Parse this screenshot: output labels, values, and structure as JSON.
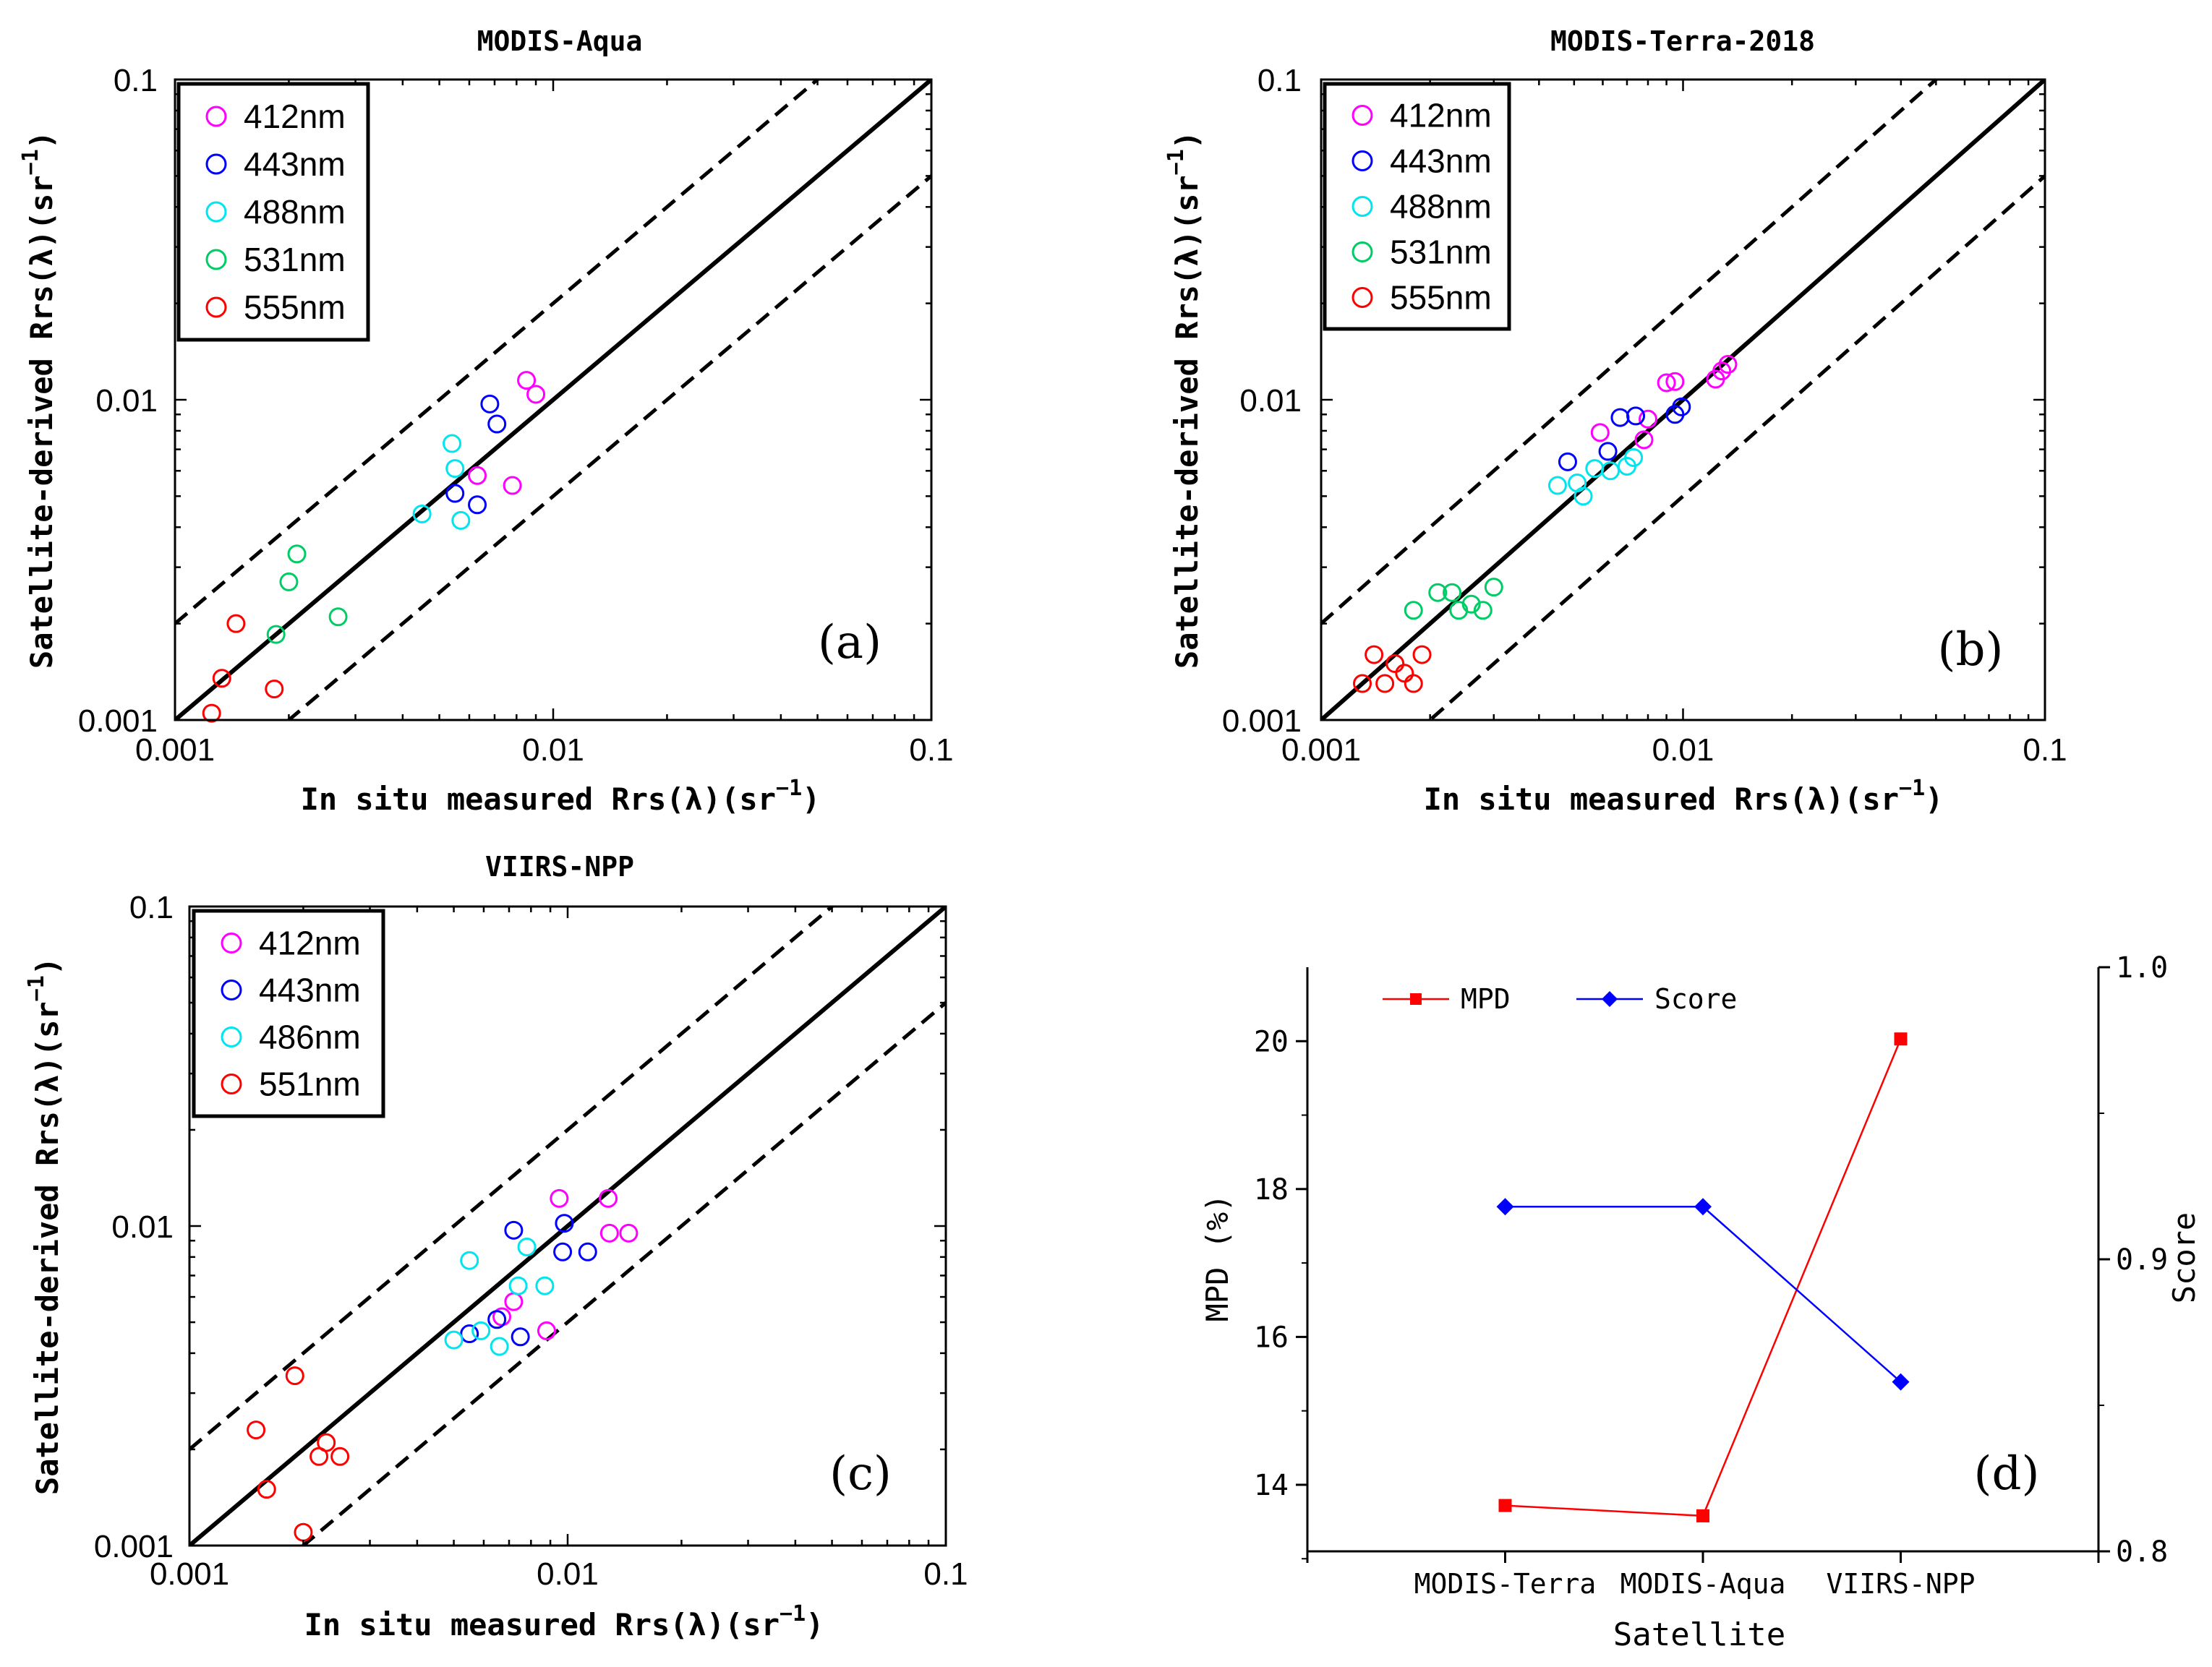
{
  "figure": {
    "panels": [
      "a",
      "b",
      "c",
      "d"
    ]
  },
  "chart_data": [
    {
      "id": "a",
      "type": "scatter",
      "title": "MODIS-Aqua",
      "xlabel_prefix": "In situ measured Rrs(λ)(sr",
      "ylabel_prefix": "Satellite-derived Rrs(λ)(sr",
      "unit_exp": "−1",
      "unit_close": ")",
      "xscale": "log",
      "yscale": "log",
      "xlim": [
        0.001,
        0.1
      ],
      "ylim": [
        0.001,
        0.1
      ],
      "xticks": [
        "0.001",
        "0.01",
        "0.1"
      ],
      "yticks": [
        "0.001",
        "0.01",
        "0.1"
      ],
      "legend_position": "top-left",
      "panel_label": "(a)",
      "reference_lines": {
        "one_to_one": 1,
        "upper": 2,
        "lower": 0.5
      },
      "series": [
        {
          "name": "412nm",
          "color": "#ff00ff",
          "points": [
            [
              0.0063,
              0.0058
            ],
            [
              0.0078,
              0.0054
            ],
            [
              0.0085,
              0.0115
            ],
            [
              0.009,
              0.0104
            ]
          ]
        },
        {
          "name": "443nm",
          "color": "#0000ff",
          "points": [
            [
              0.0055,
              0.0051
            ],
            [
              0.0063,
              0.0047
            ],
            [
              0.0068,
              0.0097
            ],
            [
              0.0071,
              0.0084
            ]
          ]
        },
        {
          "name": "488nm",
          "color": "#00e5ee",
          "points": [
            [
              0.0045,
              0.0044
            ],
            [
              0.0054,
              0.0073
            ],
            [
              0.0055,
              0.0061
            ],
            [
              0.0057,
              0.0042
            ]
          ]
        },
        {
          "name": "531nm",
          "color": "#00cc66",
          "points": [
            [
              0.00185,
              0.00185
            ],
            [
              0.002,
              0.0027
            ],
            [
              0.0021,
              0.0033
            ],
            [
              0.0027,
              0.0021
            ]
          ]
        },
        {
          "name": "555nm",
          "color": "#ff0000",
          "points": [
            [
              0.00125,
              0.00105
            ],
            [
              0.00133,
              0.00135
            ],
            [
              0.00145,
              0.002
            ],
            [
              0.00183,
              0.00125
            ]
          ]
        }
      ]
    },
    {
      "id": "b",
      "type": "scatter",
      "title": "MODIS-Terra-2018",
      "xlabel_prefix": "In situ measured Rrs(λ)(sr",
      "ylabel_prefix": "Satellite-derived Rrs(λ)(sr",
      "unit_exp": "−1",
      "unit_close": ")",
      "xscale": "log",
      "yscale": "log",
      "xlim": [
        0.001,
        0.1
      ],
      "ylim": [
        0.001,
        0.1
      ],
      "xticks": [
        "0.001",
        "0.01",
        "0.1"
      ],
      "yticks": [
        "0.001",
        "0.01",
        "0.1"
      ],
      "legend_position": "top-left",
      "panel_label": "(b)",
      "reference_lines": {
        "one_to_one": 1,
        "upper": 2,
        "lower": 0.5
      },
      "series": [
        {
          "name": "412nm",
          "color": "#ff00ff",
          "points": [
            [
              0.0059,
              0.0079
            ],
            [
              0.0078,
              0.0075
            ],
            [
              0.008,
              0.0087
            ],
            [
              0.009,
              0.0113
            ],
            [
              0.0095,
              0.0114
            ],
            [
              0.0123,
              0.0116
            ],
            [
              0.0128,
              0.0123
            ],
            [
              0.0133,
              0.0129
            ]
          ]
        },
        {
          "name": "443nm",
          "color": "#0000ff",
          "points": [
            [
              0.0048,
              0.0064
            ],
            [
              0.0062,
              0.0069
            ],
            [
              0.0067,
              0.0088
            ],
            [
              0.0074,
              0.0089
            ],
            [
              0.0095,
              0.009
            ],
            [
              0.0099,
              0.0095
            ]
          ]
        },
        {
          "name": "488nm",
          "color": "#00e5ee",
          "points": [
            [
              0.0045,
              0.0054
            ],
            [
              0.0051,
              0.0055
            ],
            [
              0.0053,
              0.005
            ],
            [
              0.0057,
              0.0061
            ],
            [
              0.0063,
              0.006
            ],
            [
              0.007,
              0.0062
            ],
            [
              0.0073,
              0.0066
            ]
          ]
        },
        {
          "name": "531nm",
          "color": "#00cc66",
          "points": [
            [
              0.0018,
              0.0022
            ],
            [
              0.0021,
              0.0025
            ],
            [
              0.0023,
              0.0025
            ],
            [
              0.0024,
              0.0022
            ],
            [
              0.0026,
              0.0023
            ],
            [
              0.0028,
              0.0022
            ],
            [
              0.003,
              0.0026
            ]
          ]
        },
        {
          "name": "555nm",
          "color": "#ff0000",
          "points": [
            [
              0.0013,
              0.0013
            ],
            [
              0.0014,
              0.0016
            ],
            [
              0.0015,
              0.0013
            ],
            [
              0.0016,
              0.0015
            ],
            [
              0.0017,
              0.0014
            ],
            [
              0.0018,
              0.0013
            ],
            [
              0.0019,
              0.0016
            ]
          ]
        }
      ]
    },
    {
      "id": "c",
      "type": "scatter",
      "title": "VIIRS-NPP",
      "xlabel_prefix": "In situ measured Rrs(λ)(sr",
      "ylabel_prefix": "Satellite-derived Rrs(λ)(sr",
      "unit_exp": "−1",
      "unit_close": ")",
      "xscale": "log",
      "yscale": "log",
      "xlim": [
        0.001,
        0.1
      ],
      "ylim": [
        0.001,
        0.1
      ],
      "xticks": [
        "0.001",
        "0.01",
        "0.1"
      ],
      "yticks": [
        "0.001",
        "0.01",
        "0.1"
      ],
      "legend_position": "top-left",
      "panel_label": "(c)",
      "reference_lines": {
        "one_to_one": 1,
        "upper": 2,
        "lower": 0.5
      },
      "series": [
        {
          "name": "412nm",
          "color": "#ff00ff",
          "points": [
            [
              0.0067,
              0.0052
            ],
            [
              0.0072,
              0.0058
            ],
            [
              0.0088,
              0.0047
            ],
            [
              0.0095,
              0.0122
            ],
            [
              0.0128,
              0.0122
            ],
            [
              0.0129,
              0.0095
            ],
            [
              0.0145,
              0.0095
            ]
          ]
        },
        {
          "name": "443nm",
          "color": "#0000ff",
          "points": [
            [
              0.0055,
              0.0046
            ],
            [
              0.0065,
              0.0051
            ],
            [
              0.0072,
              0.0097
            ],
            [
              0.0075,
              0.0045
            ],
            [
              0.0097,
              0.0083
            ],
            [
              0.0098,
              0.0102
            ],
            [
              0.0113,
              0.0083
            ]
          ]
        },
        {
          "name": "486nm",
          "color": "#00e5ee",
          "points": [
            [
              0.005,
              0.0044
            ],
            [
              0.0055,
              0.0078
            ],
            [
              0.0059,
              0.0047
            ],
            [
              0.0066,
              0.0042
            ],
            [
              0.0074,
              0.0065
            ],
            [
              0.0078,
              0.0086
            ],
            [
              0.0087,
              0.0065
            ]
          ]
        },
        {
          "name": "551nm",
          "color": "#ff0000",
          "points": [
            [
              0.0015,
              0.0023
            ],
            [
              0.0016,
              0.0015
            ],
            [
              0.0019,
              0.0034
            ],
            [
              0.002,
              0.0011
            ],
            [
              0.0022,
              0.0019
            ],
            [
              0.0023,
              0.0021
            ],
            [
              0.0025,
              0.0019
            ]
          ]
        }
      ]
    },
    {
      "id": "d",
      "type": "line",
      "categories": [
        "MODIS-Terra",
        "MODIS-Aqua",
        "VIIRS-NPP"
      ],
      "xlabel": "Satellite",
      "ylabel": "MPD (%)",
      "y2label": "Score",
      "ylim": [
        13.1,
        21.0
      ],
      "y2lim": [
        0.8,
        1.0
      ],
      "yticks": [
        "14",
        "16",
        "18",
        "20"
      ],
      "y2ticks": [
        "0.8",
        "0.9",
        "1.0"
      ],
      "legend_position": "top-left",
      "panel_label": "(d)",
      "series": [
        {
          "name": "MPD",
          "axis": "left",
          "marker": "square",
          "color": "#ff0000",
          "values": [
            13.72,
            13.58,
            20.03
          ]
        },
        {
          "name": "Score",
          "axis": "right",
          "marker": "diamond",
          "color": "#0000ff",
          "values": [
            0.918,
            0.918,
            0.858
          ]
        }
      ]
    }
  ]
}
